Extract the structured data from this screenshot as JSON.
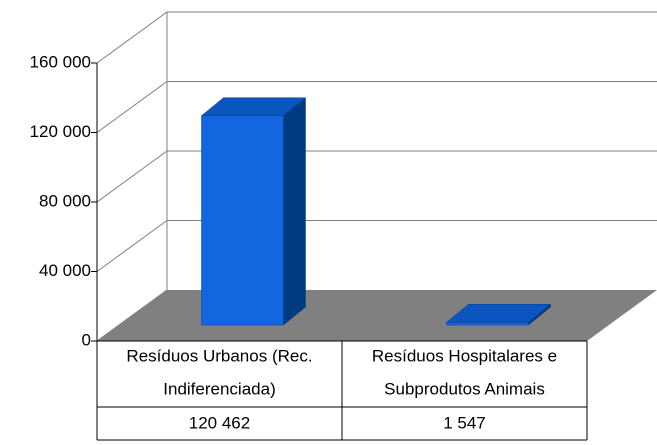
{
  "chart_data": {
    "type": "bar3d",
    "categories": [
      [
        "Resíduos Urbanos (Rec.",
        "Indiferenciada)"
      ],
      [
        "Resíduos Hospitalares e",
        "Subprodutos Animais"
      ]
    ],
    "values": [
      120462,
      1547
    ],
    "value_labels": [
      "120 462",
      "1 547"
    ],
    "color": "#1466e0",
    "ylim": [
      0,
      160000
    ],
    "yticks": [
      0,
      {
        "value": 40000,
        "label": "40 000"
      },
      {
        "value": 80000,
        "label": "80 000"
      },
      {
        "value": 120000,
        "label": "120 000"
      },
      {
        "value": 160000,
        "label": "160 000"
      }
    ],
    "grid": true
  }
}
